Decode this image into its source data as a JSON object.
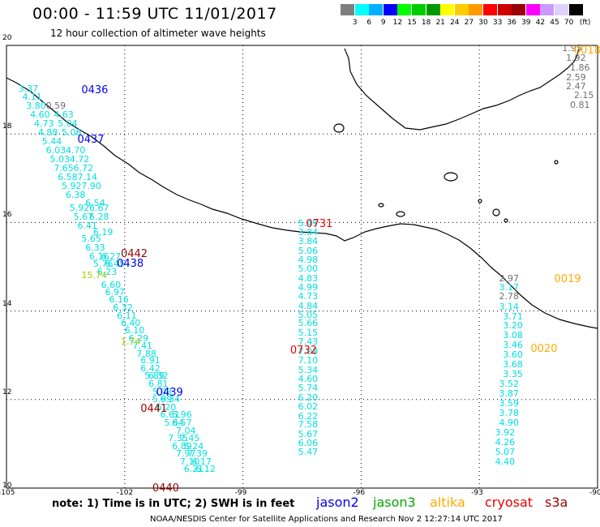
{
  "header": {
    "title": "00:00 - 11:59 UTC 11/01/2017",
    "subtitle": "12 hour collection of altimeter wave heights"
  },
  "colorbar": {
    "labels": [
      "3",
      "6",
      "9",
      "12",
      "15",
      "18",
      "21",
      "24",
      "27",
      "30",
      "33",
      "36",
      "39",
      "42",
      "45",
      "70"
    ],
    "colors": [
      "#7f7f7f",
      "#00ffff",
      "#00b0ff",
      "#0000ff",
      "#00ff00",
      "#00cc00",
      "#009900",
      "#ffff00",
      "#ffcc00",
      "#ff9900",
      "#ff0000",
      "#cc0000",
      "#990000",
      "#ff00ff",
      "#cc99ff",
      "#e0d0ff",
      "#000000"
    ],
    "unit": "(ft)"
  },
  "axes": {
    "x_ticks": [
      {
        "lon": -105,
        "label": "-105"
      },
      {
        "lon": -102,
        "label": "-102"
      },
      {
        "lon": -99,
        "label": "-99"
      },
      {
        "lon": -96,
        "label": "-96"
      },
      {
        "lon": -93,
        "label": "-93"
      },
      {
        "lon": -90,
        "label": "-90"
      }
    ],
    "y_ticks": [
      {
        "lat": 20,
        "label": "20"
      },
      {
        "lat": 18,
        "label": "18"
      },
      {
        "lat": 16,
        "label": "16"
      },
      {
        "lat": 14,
        "label": "14"
      },
      {
        "lat": 12,
        "label": "12"
      },
      {
        "lat": 10,
        "label": "10"
      }
    ],
    "lon_range": [
      -105,
      -90
    ],
    "lat_range": [
      10,
      20
    ]
  },
  "footer": {
    "note": "note: 1) Time is in UTC; 2) SWH is in feet",
    "credit": "NOAA/NESDIS Center for Satellite Applications and Research   Nov  2 12:27:14 UTC 2017",
    "legend": [
      {
        "label": "jason2",
        "color": "#0000ee"
      },
      {
        "label": "jason3",
        "color": "#00aa00"
      },
      {
        "label": "altika",
        "color": "#ffaa00"
      },
      {
        "label": "cryosat",
        "color": "#ee0000"
      },
      {
        "label": "s3a",
        "color": "#990000"
      }
    ]
  },
  "times": [
    {
      "label": "0436",
      "color": "#0000ee",
      "lon": -103.1,
      "lat": 18.98
    },
    {
      "label": "0437",
      "color": "#0000ee",
      "lon": -103.2,
      "lat": 17.86
    },
    {
      "label": "0442",
      "color": "#990000",
      "lon": -102.1,
      "lat": 15.28
    },
    {
      "label": "0438",
      "color": "#0000ee",
      "lon": -102.2,
      "lat": 15.05
    },
    {
      "label": "0439",
      "color": "#0000ee",
      "lon": -101.2,
      "lat": 12.14
    },
    {
      "label": "0441",
      "color": "#990000",
      "lon": -101.6,
      "lat": 11.78
    },
    {
      "label": "0440",
      "color": "#990000",
      "lon": -101.3,
      "lat": 9.98
    },
    {
      "label": "0731",
      "color": "#ee0000",
      "lon": -97.4,
      "lat": 15.96
    },
    {
      "label": "0732",
      "color": "#ee0000",
      "lon": -97.8,
      "lat": 13.1
    },
    {
      "label": "0018",
      "color": "#ffaa00",
      "lon": -90.6,
      "lat": 19.88
    },
    {
      "label": "0019",
      "color": "#ffaa00",
      "lon": -91.1,
      "lat": 14.7
    },
    {
      "label": "0020",
      "color": "#ffaa00",
      "lon": -91.7,
      "lat": 13.13
    }
  ],
  "tracks": [
    {
      "name": "track-jason2-0436",
      "pts": [
        [
          "3.37",
          -104.7,
          19.02
        ],
        [
          "4.11",
          -104.6,
          18.82
        ],
        [
          "3.80",
          -104.5,
          18.62
        ],
        [
          "0.59",
          -104.0,
          18.62,
          "g"
        ],
        [
          "4.60",
          -104.4,
          18.42
        ],
        [
          "4.63",
          -103.8,
          18.42
        ],
        [
          "4.73",
          -104.3,
          18.22
        ],
        [
          "5.04",
          -103.7,
          18.22
        ],
        [
          "4.88",
          -104.2,
          18.02
        ],
        [
          "5.06",
          -103.6,
          18.02
        ],
        [
          "5.44",
          -104.1,
          17.82
        ],
        [
          "6.03",
          -104.0,
          17.62
        ],
        [
          "4.70",
          -103.5,
          17.62
        ],
        [
          "5.03",
          -103.9,
          17.42
        ],
        [
          "4.72",
          -103.4,
          17.42
        ],
        [
          "7.65",
          -103.8,
          17.22
        ],
        [
          "6.72",
          -103.3,
          17.22
        ],
        [
          "6.58",
          -103.7,
          17.02
        ],
        [
          "7.14",
          -103.2,
          17.02
        ],
        [
          "5.92",
          -103.6,
          16.82
        ],
        [
          "7.90",
          -103.1,
          16.82
        ],
        [
          "6.38",
          -103.5,
          16.62
        ],
        [
          "6.54",
          -103.0,
          16.42
        ],
        [
          "5.92",
          -103.4,
          16.32
        ],
        [
          "6.67",
          -102.9,
          16.32
        ],
        [
          "5.67",
          -103.3,
          16.12
        ],
        [
          "6.28",
          -102.9,
          16.12
        ],
        [
          "6.41",
          -103.2,
          15.92
        ],
        [
          "6.19",
          -102.8,
          15.77
        ],
        [
          "5.65",
          -103.1,
          15.62
        ],
        [
          "6.33",
          -103.0,
          15.42
        ],
        [
          "6.16",
          -102.9,
          15.22
        ],
        [
          "6.27",
          -102.6,
          15.22
        ],
        [
          "5.76",
          -102.8,
          15.05
        ],
        [
          "6.45",
          -102.5,
          15.05
        ],
        [
          "6.23",
          -102.7,
          14.87
        ],
        [
          "6.60",
          -102.6,
          14.57
        ],
        [
          "6.97",
          -102.5,
          14.42
        ],
        [
          "6.16",
          -102.4,
          14.24
        ],
        [
          "6.32",
          -102.3,
          14.07
        ],
        [
          "6.11",
          -102.2,
          13.89
        ],
        [
          "6.40",
          -102.1,
          13.71
        ],
        [
          "6.10",
          -102.0,
          13.55
        ],
        [
          "6.29",
          -101.9,
          13.37
        ],
        [
          "7.41",
          -101.8,
          13.2
        ],
        [
          "7.88",
          -101.7,
          13.02
        ],
        [
          "6.91",
          -101.6,
          12.87
        ],
        [
          "6.42",
          -101.6,
          12.69
        ],
        [
          "5.89",
          -101.5,
          12.52
        ],
        [
          "6.32",
          -101.4,
          12.52
        ],
        [
          "6.81",
          -101.4,
          12.34
        ],
        [
          "5.93",
          -101.3,
          12.16
        ],
        [
          "5.99",
          -101.3,
          12.0
        ],
        [
          "6.34",
          -101.1,
          12.0
        ],
        [
          "6.20",
          -101.2,
          11.82
        ],
        [
          "6.61",
          -101.1,
          11.64
        ],
        [
          "5.96",
          -100.8,
          11.64
        ],
        [
          "5.84",
          -101.0,
          11.47
        ],
        [
          "6.57",
          -100.8,
          11.47
        ],
        [
          "7.04",
          -100.7,
          11.29
        ],
        [
          "7.35",
          -100.9,
          11.12
        ],
        [
          "7.45",
          -100.6,
          11.12
        ],
        [
          "6.89",
          -100.8,
          10.94
        ],
        [
          "5.24",
          -100.5,
          10.94
        ],
        [
          "7.97",
          -100.7,
          10.77
        ],
        [
          "7.39",
          -100.4,
          10.77
        ],
        [
          "7.10",
          -100.6,
          10.59
        ],
        [
          "6.17",
          -100.3,
          10.59
        ],
        [
          "6.21",
          -100.5,
          10.42
        ],
        [
          "6.12",
          -100.2,
          10.42
        ]
      ]
    },
    {
      "name": "track-cryosat-0731",
      "pts": [
        [
          "5.49",
          -97.6,
          15.97
        ],
        [
          "3.84",
          -97.6,
          15.77
        ],
        [
          "3.84",
          -97.6,
          15.57
        ],
        [
          "5.06",
          -97.6,
          15.35
        ],
        [
          "4.98",
          -97.6,
          15.15
        ],
        [
          "5.00",
          -97.6,
          14.95
        ],
        [
          "4.83",
          -97.6,
          14.73
        ],
        [
          "4.99",
          -97.6,
          14.52
        ],
        [
          "4.73",
          -97.6,
          14.32
        ],
        [
          "4.84",
          -97.6,
          14.11
        ],
        [
          "5.05",
          -97.6,
          13.91
        ],
        [
          "5.66",
          -97.6,
          13.71
        ],
        [
          "5.15",
          -97.6,
          13.49
        ],
        [
          "7.43",
          -97.6,
          13.29
        ],
        [
          "7.09",
          -97.6,
          13.07
        ],
        [
          "7.10",
          -97.6,
          12.87
        ],
        [
          "5.34",
          -97.6,
          12.66
        ],
        [
          "4.60",
          -97.6,
          12.45
        ],
        [
          "5.74",
          -97.6,
          12.25
        ],
        [
          "6.20",
          -97.6,
          12.04
        ],
        [
          "6.02",
          -97.6,
          11.83
        ],
        [
          "6.22",
          -97.6,
          11.62
        ],
        [
          "7.58",
          -97.6,
          11.42
        ],
        [
          "5.67",
          -97.6,
          11.21
        ],
        [
          "6.06",
          -97.6,
          11.0
        ],
        [
          "5.47",
          -97.6,
          10.8
        ]
      ]
    },
    {
      "name": "track-altika-0018",
      "pts": [
        [
          "1.95",
          -90.9,
          19.92,
          "g"
        ],
        [
          "1.92",
          -90.8,
          19.7,
          "g"
        ],
        [
          "1.86",
          -90.7,
          19.48,
          "g"
        ],
        [
          "2.59",
          -90.8,
          19.27,
          "g"
        ],
        [
          "2.47",
          -90.8,
          19.07,
          "g"
        ],
        [
          "2.15",
          -90.6,
          18.86,
          "g"
        ],
        [
          "0.81",
          -90.7,
          18.65,
          "g"
        ],
        [
          "2.97",
          -92.5,
          14.72,
          "g"
        ],
        [
          "3.17",
          -92.5,
          14.52
        ],
        [
          "2.78",
          -92.5,
          14.32,
          "g"
        ],
        [
          "3.14",
          -92.5,
          14.09
        ],
        [
          "3.71",
          -92.4,
          13.87
        ],
        [
          "3.20",
          -92.4,
          13.67
        ],
        [
          "3.08",
          -92.4,
          13.44
        ],
        [
          "3.46",
          -92.4,
          13.22
        ],
        [
          "3.60",
          -92.4,
          13.0
        ],
        [
          "3.68",
          -92.4,
          12.78
        ],
        [
          "3.35",
          -92.4,
          12.56
        ],
        [
          "3.52",
          -92.5,
          12.34
        ],
        [
          "3.87",
          -92.5,
          12.12
        ],
        [
          "3.59",
          -92.5,
          11.9
        ],
        [
          "3.78",
          -92.5,
          11.68
        ],
        [
          "4.90",
          -92.5,
          11.46
        ],
        [
          "3.92",
          -92.6,
          11.24
        ],
        [
          "4.26",
          -92.6,
          11.02
        ],
        [
          "5.07",
          -92.6,
          10.8
        ],
        [
          "4.40",
          -92.6,
          10.58
        ]
      ]
    },
    {
      "name": "track-jason3-minor",
      "pts": [
        [
          "15.74",
          -103.1,
          14.8,
          "y"
        ],
        [
          "1.74",
          -102.1,
          13.3,
          "y"
        ]
      ]
    }
  ]
}
